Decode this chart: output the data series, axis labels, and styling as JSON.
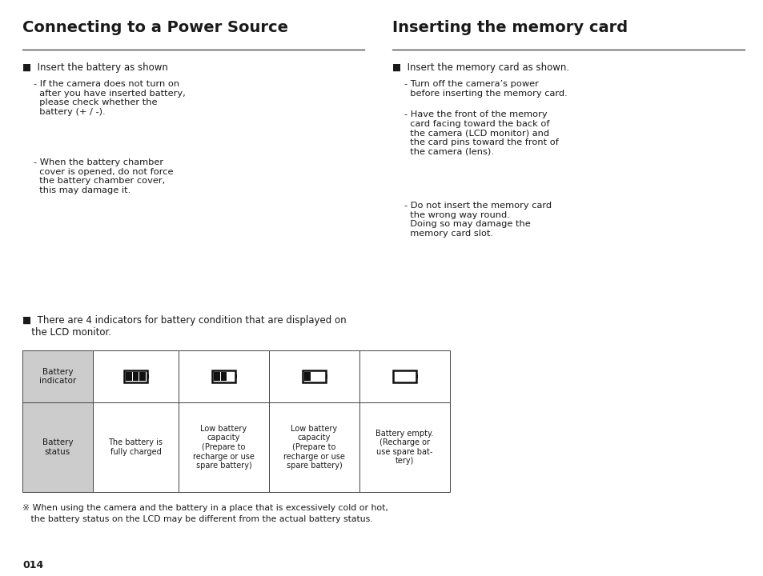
{
  "bg_color": "#ffffff",
  "page_width": 9.54,
  "page_height": 7.2,
  "left_title": "Connecting to a Power Source",
  "right_title": "Inserting the memory card",
  "header_color": "#1a1a1a",
  "text_color": "#1a1a1a",
  "table_header_bg": "#cccccc",
  "table_border_color": "#444444",
  "left_bullet0": "■  Insert the battery as shown",
  "left_sub1": "- If the camera does not turn on\n  after you have inserted battery,\n  please check whether the\n  battery (+ / -).",
  "left_sub2": "- When the battery chamber\n  cover is opened, do not force\n  the battery chamber cover,\n  this may damage it.",
  "right_bullet0": "■  Insert the memory card as shown.",
  "right_sub1": "- Turn off the camera’s power\n  before inserting the memory card.",
  "right_sub2": "- Have the front of the memory\n  card facing toward the back of\n  the camera (LCD monitor) and\n  the card pins toward the front of\n  the camera (lens).",
  "right_sub3": "- Do not insert the memory card\n  the wrong way round.\n  Doing so may damage the\n  memory card slot.",
  "bottom_bullet": "■  There are 4 indicators for battery condition that are displayed on\n   the LCD monitor.",
  "footnote_line1": "※ When using the camera and the battery in a place that is excessively cold or hot,",
  "footnote_line2": "   the battery status on the LCD may be different from the actual battery status.",
  "page_num": "014",
  "table_col0_hdr": "Battery\nindicator",
  "table_col0_row": "Battery\nstatus",
  "table_col1_row": "The battery is\nfully charged",
  "table_col2_row": "Low battery\ncapacity\n(Prepare to\nrecharge or use\nspare battery)",
  "table_col3_row": "Low battery\ncapacity\n(Prepare to\nrecharge or use\nspare battery)",
  "table_col4_row": "Battery empty.\n(Recharge or\nuse spare bat-\ntery)"
}
